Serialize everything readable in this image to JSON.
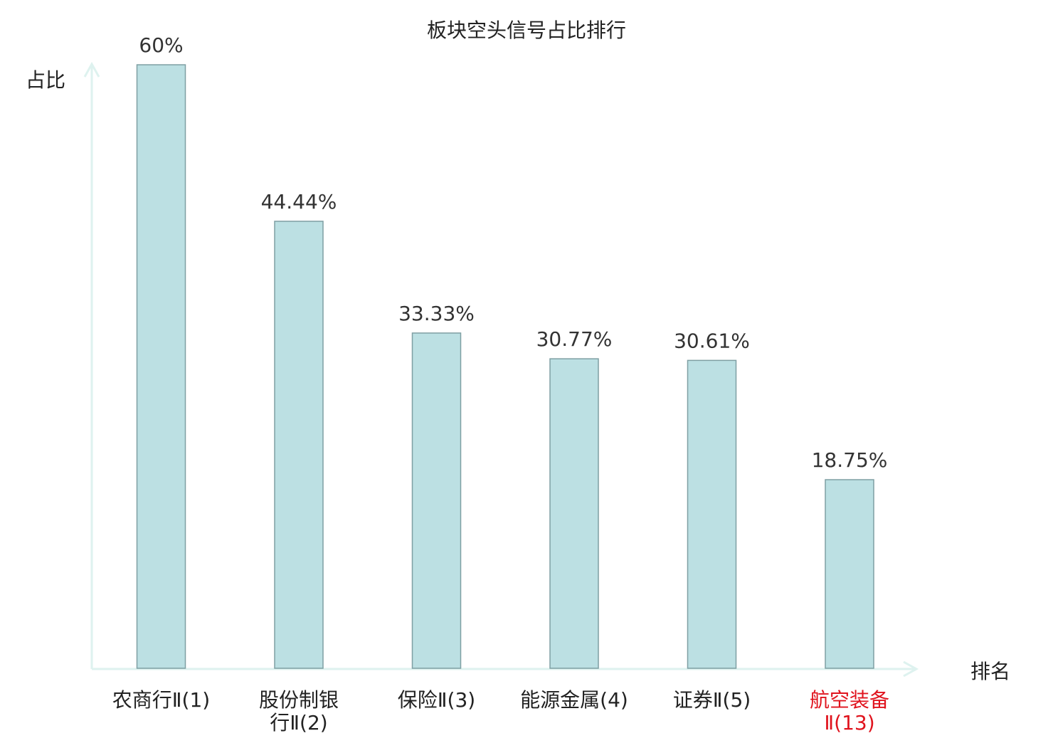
{
  "chart_data": {
    "type": "bar",
    "title": "板块空头信号占比排行",
    "ylabel": "占比",
    "xlabel": "排名",
    "ylim": [
      0,
      60
    ],
    "grid": false,
    "categories": [
      "农商行Ⅱ(1)",
      "股份制银行Ⅱ(2)",
      "保险Ⅱ(3)",
      "能源金属(4)",
      "证券Ⅱ(5)",
      "航空装备Ⅱ(13)"
    ],
    "category_lines": [
      [
        "农商行Ⅱ(1)"
      ],
      [
        "股份制银",
        "行Ⅱ(2)"
      ],
      [
        "保险Ⅱ(3)"
      ],
      [
        "能源金属(4)"
      ],
      [
        "证券Ⅱ(5)"
      ],
      [
        "航空装备",
        "Ⅱ(13)"
      ]
    ],
    "values": [
      60,
      44.44,
      33.33,
      30.77,
      30.61,
      18.75
    ],
    "value_labels": [
      "60%",
      "44.44%",
      "33.33%",
      "30.77%",
      "30.61%",
      "18.75%"
    ],
    "highlight_index": 5,
    "colors": {
      "bar_fill": "#bce0e3",
      "bar_stroke": "#7f9fa3",
      "axis": "#def2ef",
      "text": "#333333",
      "highlight_text": "#e0141e"
    }
  }
}
